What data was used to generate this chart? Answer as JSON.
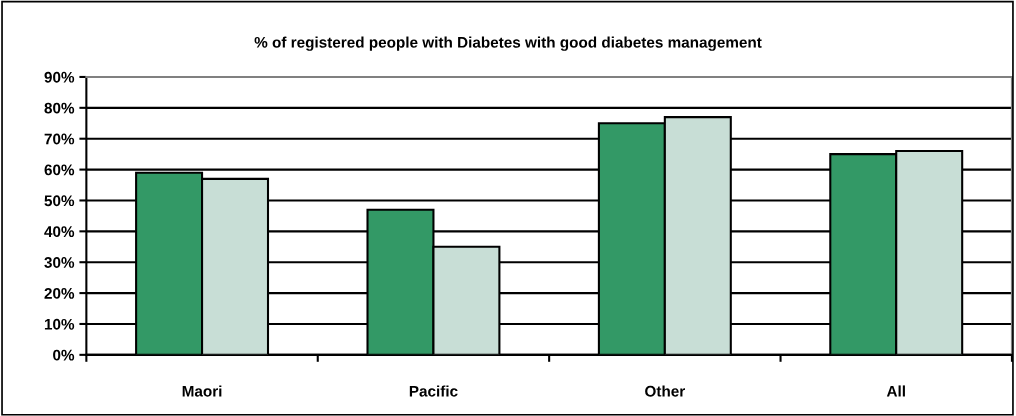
{
  "chart_data": {
    "type": "bar",
    "title": "% of registered people with Diabetes with good diabetes management",
    "categories": [
      "Maori",
      "Pacific",
      "Other",
      "All"
    ],
    "series": [
      {
        "color": "#339966",
        "values": [
          59,
          47,
          75,
          65
        ]
      },
      {
        "color": "#c8ded6",
        "values": [
          57,
          35,
          77,
          66
        ]
      }
    ],
    "ylim": [
      0,
      90
    ],
    "yticks": [
      {
        "value": 0,
        "label": "0%"
      },
      {
        "value": 10,
        "label": "10%"
      },
      {
        "value": 20,
        "label": "20%"
      },
      {
        "value": 30,
        "label": "30%"
      },
      {
        "value": 40,
        "label": "40%"
      },
      {
        "value": 50,
        "label": "50%"
      },
      {
        "value": 60,
        "label": "60%"
      },
      {
        "value": 70,
        "label": "70%"
      },
      {
        "value": 80,
        "label": "80%"
      },
      {
        "value": 90,
        "label": "90%"
      }
    ],
    "grid": "y"
  }
}
